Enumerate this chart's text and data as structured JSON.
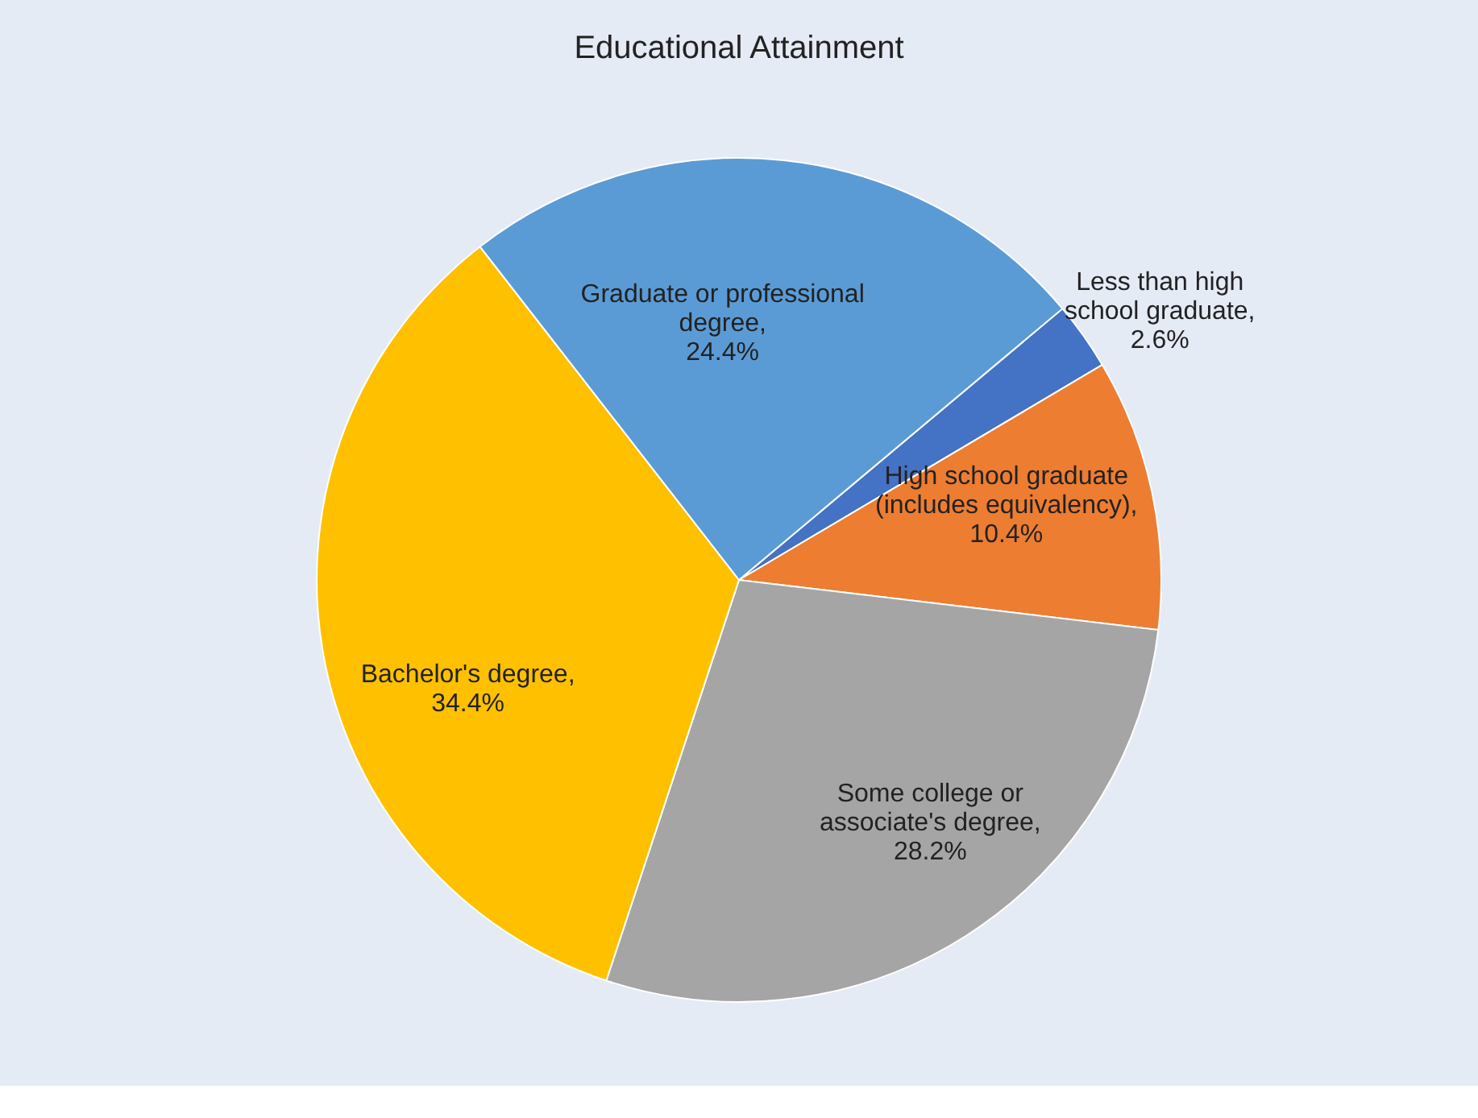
{
  "chart_data": {
    "type": "pie",
    "title": "Educational Attainment",
    "categories": [
      "Less than high school graduate",
      "High school graduate (includes equivalency)",
      "Some college or associate's degree",
      "Bachelor's degree",
      "Graduate or professional degree"
    ],
    "value_labels": [
      ", 2.6%",
      ", 10.4%",
      ", 28.2%",
      ", 34.4%",
      ", 24.4%"
    ],
    "values": [
      2.6,
      10.4,
      28.2,
      34.4,
      24.4
    ],
    "colors": [
      "#4472c4",
      "#ed7d31",
      "#a5a5a5",
      "#ffc000",
      "#5b9bd5"
    ],
    "legend": false
  }
}
